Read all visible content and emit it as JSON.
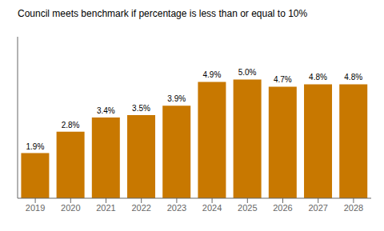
{
  "chart_data": {
    "type": "bar",
    "title": "Council meets benchmark if percentage is less than or equal to 10%",
    "categories": [
      "2019",
      "2020",
      "2021",
      "2022",
      "2023",
      "2024",
      "2025",
      "2026",
      "2027",
      "2028"
    ],
    "values": [
      1.9,
      2.8,
      3.4,
      3.5,
      3.9,
      4.9,
      5.0,
      4.7,
      4.8,
      4.8
    ],
    "value_labels": [
      "1.9%",
      "2.8%",
      "3.4%",
      "3.5%",
      "3.9%",
      "4.9%",
      "5.0%",
      "4.7%",
      "4.8%",
      "4.8%"
    ],
    "color": "#C87800",
    "ylim": [
      0,
      6.8
    ],
    "data_labels": true,
    "tick_labels": "x",
    "grid": false
  }
}
